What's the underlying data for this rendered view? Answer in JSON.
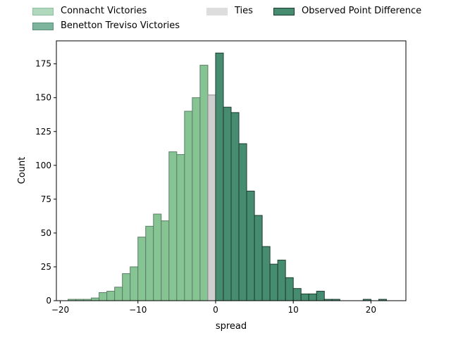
{
  "chart_data": {
    "type": "bar",
    "xlabel": "spread",
    "ylabel": "Count",
    "xlim": [
      -20.5,
      24.5
    ],
    "ylim": [
      0,
      192
    ],
    "bin_width": 1,
    "xticks": [
      -20,
      -10,
      0,
      10,
      20
    ],
    "xtick_labels": [
      "−20",
      "−10",
      "0",
      "10",
      "20"
    ],
    "yticks": [
      0,
      25,
      50,
      75,
      100,
      125,
      150,
      175
    ],
    "ytick_labels": [
      "0",
      "25",
      "50",
      "75",
      "100",
      "125",
      "150",
      "175"
    ],
    "legend_position": "top, above plot",
    "series": [
      {
        "name": "Connacht Victories",
        "color": "#86c494",
        "bins": [
          {
            "x": -18.5,
            "count": 1
          },
          {
            "x": -17.5,
            "count": 1
          },
          {
            "x": -16.5,
            "count": 1
          },
          {
            "x": -15.5,
            "count": 2
          },
          {
            "x": -14.5,
            "count": 6
          },
          {
            "x": -13.5,
            "count": 7
          },
          {
            "x": -12.5,
            "count": 10
          },
          {
            "x": -11.5,
            "count": 20
          },
          {
            "x": -10.5,
            "count": 25
          },
          {
            "x": -9.5,
            "count": 47
          },
          {
            "x": -8.5,
            "count": 55
          },
          {
            "x": -7.5,
            "count": 64
          },
          {
            "x": -6.5,
            "count": 59
          },
          {
            "x": -5.5,
            "count": 110
          },
          {
            "x": -4.5,
            "count": 108
          },
          {
            "x": -3.5,
            "count": 140
          },
          {
            "x": -2.5,
            "count": 150
          },
          {
            "x": -1.5,
            "count": 174
          }
        ]
      },
      {
        "name": "Ties",
        "color": "#cfcfcf",
        "bins": [
          {
            "x": -0.5,
            "count": 152
          }
        ]
      },
      {
        "name": "Benetton Treviso Victories",
        "color": "#468c71",
        "bins": [
          {
            "x": 0.5,
            "count": 183
          },
          {
            "x": 1.5,
            "count": 143
          },
          {
            "x": 2.5,
            "count": 139
          },
          {
            "x": 3.5,
            "count": 116
          },
          {
            "x": 4.5,
            "count": 81
          },
          {
            "x": 5.5,
            "count": 63
          },
          {
            "x": 6.5,
            "count": 40
          },
          {
            "x": 7.5,
            "count": 27
          },
          {
            "x": 8.5,
            "count": 30
          },
          {
            "x": 9.5,
            "count": 17
          },
          {
            "x": 10.5,
            "count": 9
          },
          {
            "x": 11.5,
            "count": 5
          },
          {
            "x": 12.5,
            "count": 5
          },
          {
            "x": 13.5,
            "count": 7
          },
          {
            "x": 14.5,
            "count": 1
          },
          {
            "x": 15.5,
            "count": 1
          },
          {
            "x": 19.5,
            "count": 1
          },
          {
            "x": 21.5,
            "count": 1
          }
        ]
      }
    ],
    "legend": [
      {
        "label": "Connacht Victories",
        "color": "#b0d8bc"
      },
      {
        "label": "Benetton Treviso Victories",
        "color": "#7db49d"
      },
      {
        "label": "Ties",
        "color": "#dddddd"
      },
      {
        "label": "Observed Point Difference",
        "color": "#468c71"
      }
    ]
  }
}
